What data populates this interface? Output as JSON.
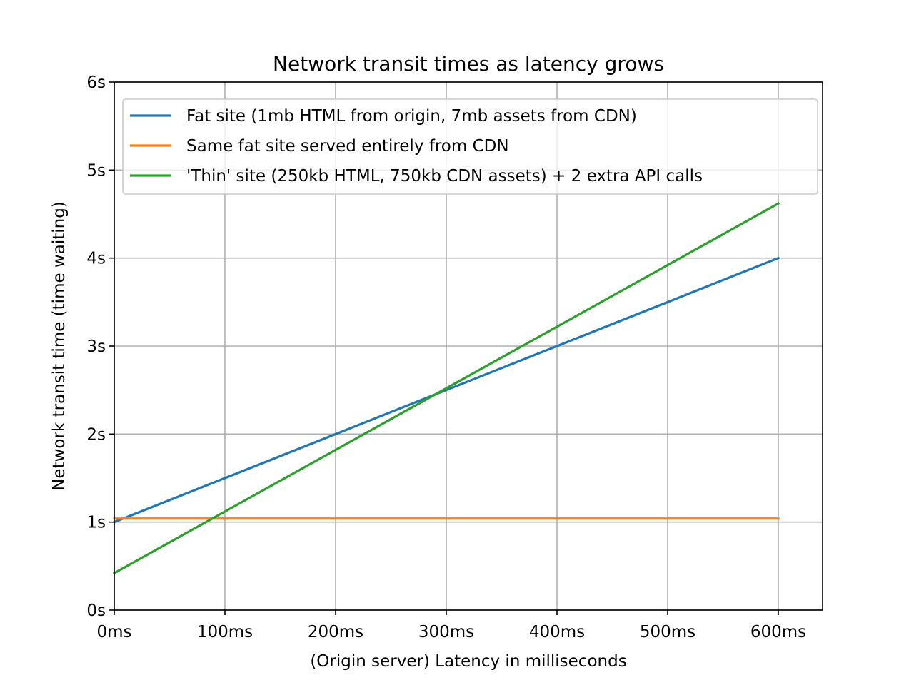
{
  "chart_data": {
    "type": "line",
    "title": "Network transit times as latency grows",
    "xlabel": "(Origin server) Latency in milliseconds",
    "ylabel": "Network transit time (time waiting)",
    "xlim": [
      0,
      640
    ],
    "ylim": [
      0,
      6
    ],
    "xticks": [
      0,
      100,
      200,
      300,
      400,
      500,
      600
    ],
    "xtick_labels": [
      "0ms",
      "100ms",
      "200ms",
      "300ms",
      "400ms",
      "500ms",
      "600ms"
    ],
    "yticks": [
      0,
      1,
      2,
      3,
      4,
      5,
      6
    ],
    "ytick_labels": [
      "0s",
      "1s",
      "2s",
      "3s",
      "4s",
      "5s",
      "6s"
    ],
    "grid": true,
    "legend_position": "top",
    "series": [
      {
        "name": "Fat site (1mb HTML from origin, 7mb assets from CDN)",
        "color": "#1f77b4",
        "x": [
          0,
          100,
          200,
          300,
          400,
          500,
          600
        ],
        "y": [
          1.0,
          1.5,
          2.0,
          2.5,
          3.0,
          3.5,
          4.0
        ]
      },
      {
        "name": "Same fat site served entirely from CDN",
        "color": "#ff7f0e",
        "x": [
          0,
          100,
          200,
          300,
          400,
          500,
          600
        ],
        "y": [
          1.04,
          1.04,
          1.04,
          1.04,
          1.04,
          1.04,
          1.04
        ]
      },
      {
        "name": "'Thin' site (250kb HTML, 750kb CDN assets) + 2 extra API calls",
        "color": "#2ca02c",
        "x": [
          0,
          100,
          200,
          300,
          400,
          500,
          600
        ],
        "y": [
          0.42,
          1.12,
          1.82,
          2.52,
          3.22,
          3.92,
          4.62
        ]
      }
    ]
  }
}
